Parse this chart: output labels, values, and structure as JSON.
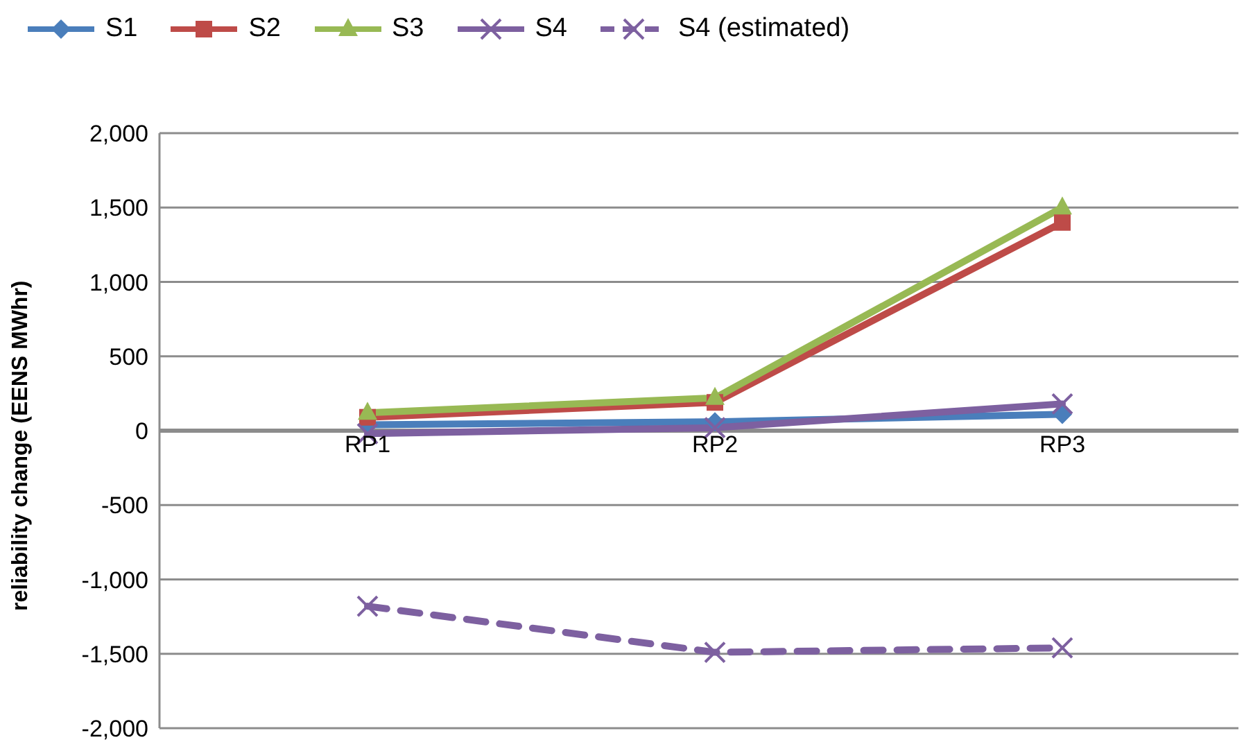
{
  "chart_data": {
    "type": "line",
    "ylabel": "reliability change  (EENS MWhr)",
    "categories": [
      "RP1",
      "RP2",
      "RP3"
    ],
    "series": [
      {
        "name": "S1",
        "color": "#4a7ebb",
        "marker": "diamond",
        "line_style": "solid",
        "values": [
          40,
          60,
          110
        ]
      },
      {
        "name": "S2",
        "color": "#be4b48",
        "marker": "square",
        "line_style": "solid",
        "values": [
          90,
          190,
          1400
        ]
      },
      {
        "name": "S3",
        "color": "#98b954",
        "marker": "triangle",
        "line_style": "solid",
        "values": [
          120,
          220,
          1500
        ]
      },
      {
        "name": "S4",
        "color": "#7d60a0",
        "marker": "cross",
        "line_style": "solid",
        "values": [
          -20,
          20,
          180
        ]
      },
      {
        "name": "S4 (estimated)",
        "color": "#7d60a0",
        "marker": "cross",
        "line_style": "dashed",
        "values": [
          -1180,
          -1490,
          -1460
        ]
      }
    ],
    "ylim": [
      -2000,
      2000
    ],
    "yticks": [
      {
        "value": -2000,
        "label": "-2,000"
      },
      {
        "value": -1500,
        "label": "-1,500"
      },
      {
        "value": -1000,
        "label": "-1,000"
      },
      {
        "value": -500,
        "label": "-500"
      },
      0,
      500,
      {
        "value": 1000,
        "label": "1,000"
      },
      {
        "value": 1500,
        "label": "1,500"
      },
      {
        "value": 2000,
        "label": "2,000"
      }
    ],
    "grid": "y",
    "legend": "top"
  }
}
